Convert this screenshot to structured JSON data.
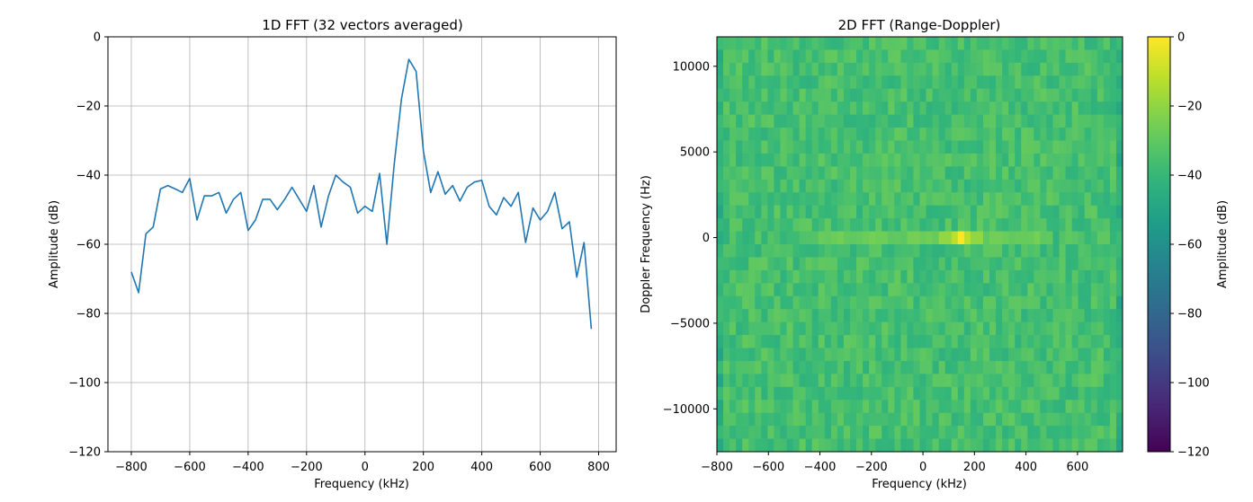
{
  "chart_data": [
    {
      "type": "line",
      "title": "1D FFT (32 vectors averaged)",
      "xlabel": "Frequency (kHz)",
      "ylabel": "Amplitude (dB)",
      "xlim": [
        -880,
        860
      ],
      "ylim": [
        -120,
        0
      ],
      "grid": true,
      "xticks": [
        -800,
        -600,
        -400,
        -200,
        0,
        200,
        400,
        600,
        800
      ],
      "yticks": [
        0,
        -20,
        -40,
        -60,
        -80,
        -100,
        -120
      ],
      "xtick_labels": [
        "−800",
        "−600",
        "−400",
        "−200",
        "0",
        "200",
        "400",
        "600",
        "800"
      ],
      "ytick_labels": [
        "0",
        "−20",
        "−40",
        "−60",
        "−80",
        "−100",
        "−120"
      ],
      "series": [
        {
          "name": "spectrum",
          "color": "#1f77b4",
          "x": [
            -800,
            -775,
            -750,
            -725,
            -700,
            -675,
            -650,
            -625,
            -600,
            -575,
            -550,
            -525,
            -500,
            -475,
            -450,
            -425,
            -400,
            -375,
            -350,
            -325,
            -300,
            -275,
            -250,
            -225,
            -200,
            -175,
            -150,
            -125,
            -100,
            -75,
            -50,
            -25,
            0,
            25,
            50,
            75,
            100,
            125,
            150,
            175,
            200,
            225,
            250,
            275,
            300,
            325,
            350,
            375,
            400,
            425,
            450,
            475,
            500,
            525,
            550,
            575,
            600,
            625,
            650,
            675,
            700,
            725,
            750,
            775
          ],
          "values": [
            -68,
            -74,
            -57,
            -55,
            -44,
            -43,
            -44,
            -45,
            -41,
            -53,
            -46,
            -46,
            -45,
            -51,
            -47,
            -45,
            -56,
            -53,
            -47,
            -47,
            -50,
            -47,
            -43.5,
            -47,
            -50.5,
            -43,
            -55,
            -46,
            -40,
            -42,
            -43.5,
            -51,
            -49,
            -50.5,
            -39.5,
            -60,
            -37,
            -18,
            -6.5,
            -10,
            -33,
            -45,
            -39,
            -45.5,
            -43,
            -47.5,
            -43.5,
            -42,
            -41.5,
            -49,
            -51.5,
            -46.5,
            -49,
            -45,
            -59.5,
            -49.5,
            -53,
            -50.5,
            -45,
            -55.5,
            -53.5,
            -69.5,
            -59.5,
            -84.5
          ]
        }
      ]
    },
    {
      "type": "heatmap",
      "title": "2D FFT (Range-Doppler)",
      "xlabel": "Frequency (kHz)",
      "ylabel": "Doppler Frequency (Hz)",
      "xlim": [
        -800,
        775
      ],
      "ylim": [
        -12500,
        11719
      ],
      "xticks": [
        -800,
        -600,
        -400,
        -200,
        0,
        200,
        400,
        600
      ],
      "yticks": [
        10000,
        5000,
        0,
        -5000,
        -10000
      ],
      "xtick_labels": [
        "−800",
        "−600",
        "−400",
        "−200",
        "0",
        "200",
        "400",
        "600"
      ],
      "ytick_labels": [
        "10000",
        "5000",
        "0",
        "−5000",
        "−10000"
      ],
      "columns": 64,
      "rows": 32,
      "background_dB_mean": -36,
      "peak": {
        "frequency_kHz": 150,
        "doppler_Hz": 0,
        "amplitude_dB": 0
      },
      "zero_doppler_ridge_kHz": [
        -400,
        500
      ],
      "colorbar": {
        "label": "Amplitude (dB)",
        "range": [
          -120,
          0
        ],
        "ticks": [
          0,
          -20,
          -40,
          -60,
          -80,
          -100,
          -120
        ],
        "tick_labels": [
          "0",
          "−20",
          "−40",
          "−60",
          "−80",
          "−100",
          "−120"
        ],
        "colormap": "viridis"
      }
    }
  ]
}
